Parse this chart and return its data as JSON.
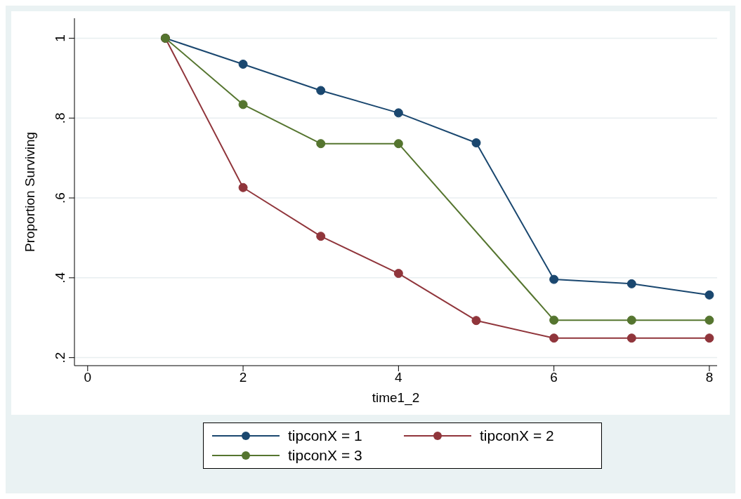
{
  "chart_data": {
    "type": "line",
    "xlabel": "time1_2",
    "ylabel": "Proportion Surviving",
    "xlim": [
      -0.17,
      8.1
    ],
    "ylim": [
      0.18,
      1.05
    ],
    "xticks": [
      0,
      2,
      4,
      6,
      8
    ],
    "yticks": [
      {
        "value": 0.2,
        "label": ".2"
      },
      {
        "value": 0.4,
        "label": ".4"
      },
      {
        "value": 0.6,
        "label": ".6"
      },
      {
        "value": 0.8,
        "label": ".8"
      },
      {
        "value": 1,
        "label": "1"
      }
    ],
    "grid": "y",
    "legend": "bottom",
    "marker": "circle",
    "line_style": "solid",
    "series": [
      {
        "name": "tipconX = 1",
        "color": "#1a476f",
        "x": [
          1,
          2,
          3,
          4,
          5,
          6,
          7,
          8
        ],
        "values": [
          1,
          0.935,
          0.869,
          0.813,
          0.738,
          0.396,
          0.385,
          0.357
        ]
      },
      {
        "name": "tipconX = 2",
        "color": "#90353b",
        "x": [
          1,
          2,
          3,
          4,
          5,
          6,
          7,
          8
        ],
        "values": [
          1,
          0.626,
          0.504,
          0.411,
          0.293,
          0.249,
          0.249,
          0.249
        ]
      },
      {
        "name": "tipconX = 3",
        "color": "#55752f",
        "x": [
          1,
          2,
          3,
          4,
          6,
          7,
          8
        ],
        "values": [
          1,
          0.834,
          0.736,
          0.736,
          0.294,
          0.294,
          0.294
        ]
      }
    ]
  }
}
